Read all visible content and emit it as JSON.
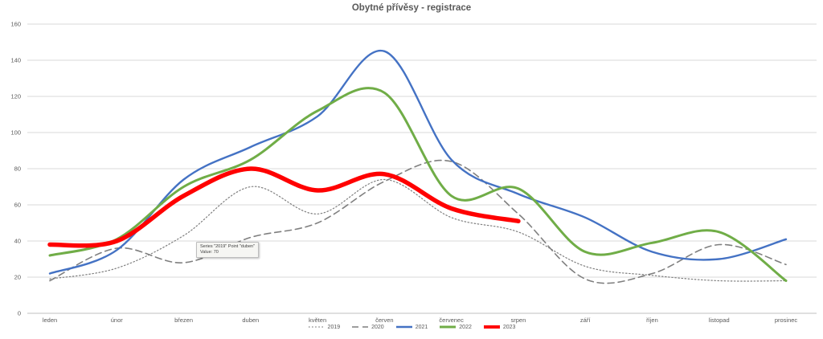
{
  "title": "Obytné přívěsy - registrace",
  "tooltip": {
    "line1": "Series \"2019\" Point \"duben\"",
    "line2": "Value: 70"
  },
  "colors": {
    "background": "#ffffff",
    "gridline": "#d9d9d9",
    "axis_line": "#bfbfbf",
    "text": "#595959",
    "series_2019": "#7f7f7f",
    "series_2020": "#7f7f7f",
    "series_2021": "#4472c4",
    "series_2022": "#70ad47",
    "series_2023": "#ff0000"
  },
  "chart_data": {
    "type": "line",
    "title": "Obytné přívěsy - registrace",
    "categories": [
      "leden",
      "únor",
      "březen",
      "duben",
      "květen",
      "červen",
      "červenec",
      "srpen",
      "září",
      "říjen",
      "listopad",
      "prosinec"
    ],
    "y_ticks": [
      0,
      20,
      40,
      60,
      80,
      100,
      120,
      140,
      160
    ],
    "ylim": [
      0,
      160
    ],
    "grid": true,
    "legend_position": "bottom",
    "line_smoothing": true,
    "series": [
      {
        "name": "2019",
        "color": "#7f7f7f",
        "dash": "dotted",
        "width": 1.2,
        "values": [
          19,
          25,
          43,
          70,
          55,
          74,
          53,
          45,
          26,
          21,
          18,
          18
        ]
      },
      {
        "name": "2020",
        "color": "#7f7f7f",
        "dash": "dashed",
        "width": 1.6,
        "values": [
          18,
          36,
          28,
          42,
          50,
          73,
          84,
          55,
          19,
          22,
          38,
          27
        ]
      },
      {
        "name": "2021",
        "color": "#4472c4",
        "dash": "solid",
        "width": 2.4,
        "values": [
          22,
          35,
          74,
          92,
          109,
          145,
          85,
          66,
          53,
          34,
          30,
          41
        ]
      },
      {
        "name": "2022",
        "color": "#70ad47",
        "dash": "solid",
        "width": 3,
        "values": [
          32,
          41,
          70,
          85,
          112,
          122,
          65,
          69,
          34,
          39,
          45,
          18
        ]
      },
      {
        "name": "2023",
        "color": "#ff0000",
        "dash": "solid",
        "width": 5.5,
        "values": [
          38,
          40,
          65,
          80,
          68,
          77,
          58,
          51,
          null,
          null,
          null,
          null
        ]
      }
    ]
  }
}
